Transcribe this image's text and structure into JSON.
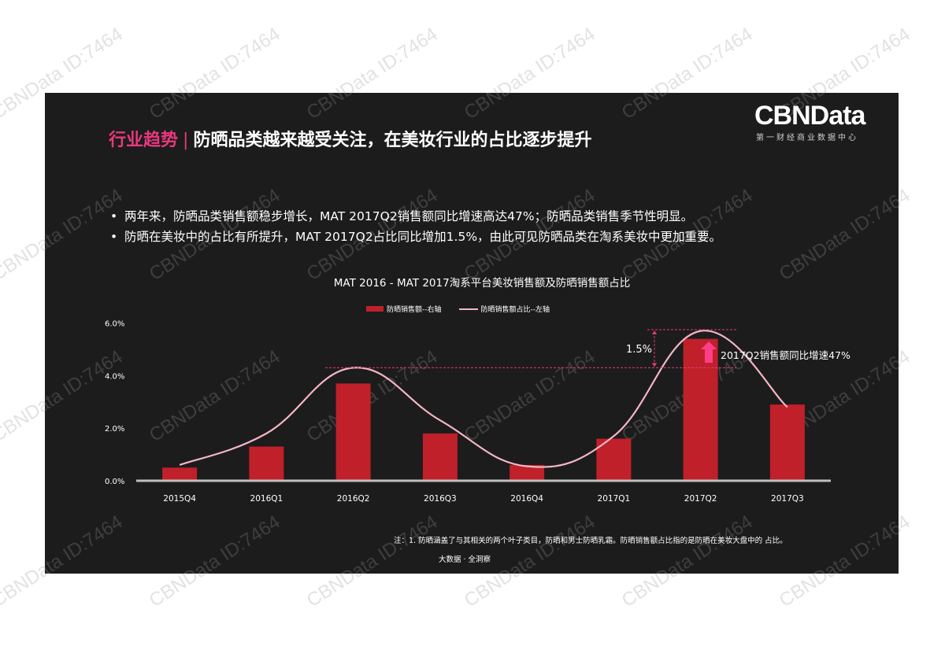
{
  "header": {
    "tag": "行业趋势",
    "separator": "|",
    "title": "防晒品类越来越受关注，在美妆行业的占比逐步提升"
  },
  "logo": {
    "name": "CBNData",
    "subtitle": "第一财经商业数据中心"
  },
  "bullets": [
    "两年来，防晒品类销售额稳步增长，MAT 2017Q2销售额同比增速高达47%；防晒品类销售季节性明显。",
    "防晒在美妆中的占比有所提升，MAT 2017Q2占比同比增加1.5%，由此可见防晒品类在淘系美妆中更加重要。"
  ],
  "bullet_symbol": "•",
  "annotations": {
    "delta_label": "1.5%",
    "growth_label": "2017Q2销售额同比增速47%"
  },
  "footnote": "注：1. 防晒涵盖了与其相关的两个叶子类目，防晒和男士防晒乳霜。防晒销售额占比指的是防晒在美妆大盘中的 占比。",
  "source": "大数据 · 全洞察",
  "watermark": "CBNData ID:7464",
  "colors": {
    "background": "#1c1c1c",
    "accent": "#e8397d",
    "bar": "#c0202a",
    "line": "#f4b6c4",
    "annotation": "#e8397d",
    "arrow": "#ff3e8a",
    "axis": "#bfbfbf"
  },
  "chart_data": {
    "type": "bar",
    "title": "MAT 2016 - MAT 2017淘系平台美妆销售额及防晒销售额占比",
    "categories": [
      "2015Q4",
      "2016Q1",
      "2016Q2",
      "2016Q3",
      "2016Q4",
      "2017Q1",
      "2017Q2",
      "2017Q3"
    ],
    "series": [
      {
        "name": "防晒销售额--右轴",
        "type": "bar",
        "axis": "right",
        "note": "right axis unlabeled; values expressed on left-axis-equivalent scale",
        "values": [
          0.5,
          1.3,
          3.7,
          1.8,
          0.6,
          1.6,
          5.4,
          2.9
        ]
      },
      {
        "name": "防晒销售额占比--左轴",
        "type": "line",
        "smooth": true,
        "axis": "left",
        "unit": "%",
        "values": [
          0.6,
          1.8,
          4.3,
          2.3,
          0.55,
          1.7,
          5.7,
          2.8
        ]
      }
    ],
    "y_ticks": [
      "0.0%",
      "2.0%",
      "4.0%",
      "6.0%"
    ],
    "ylim": [
      0,
      6
    ],
    "xlabel": "",
    "ylabel": "",
    "grid": false,
    "legend_position": "top",
    "reference_lines": [
      {
        "label": "2016Q2 peak",
        "value": 4.3
      },
      {
        "label": "2017Q2 peak",
        "value": 5.75
      }
    ]
  }
}
